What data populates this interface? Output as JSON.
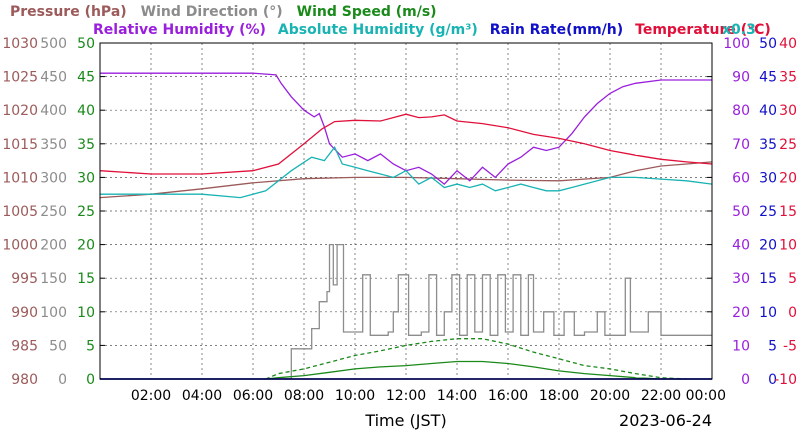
{
  "legend_row1": [
    {
      "key": "pressure",
      "label": "Pressure (hPa)",
      "color": "#9c5a5a"
    },
    {
      "key": "wind_dir",
      "label": "Wind Direction (°)",
      "color": "#8c8c8c"
    },
    {
      "key": "wind_speed",
      "label": "Wind Speed (m/s)",
      "color": "#1a8a1a"
    }
  ],
  "legend_row2": [
    {
      "key": "rel_hum",
      "label": "Relative Humidity (%)",
      "color": "#9a1fdc"
    },
    {
      "key": "abs_hum",
      "label": "Absolute Humidity (g/m³)",
      "color": "#19b3b3"
    },
    {
      "key": "rain",
      "label": "Rain Rate(mm/h)",
      "color": "#1010c8"
    },
    {
      "key": "temp",
      "label": "Temperature (°C)",
      "color": "#e0103a"
    }
  ],
  "abs_hum_scale_note": "x0.3",
  "axis_title": "Time (JST)",
  "date_label": "2023-06-24",
  "chart_data": {
    "type": "line",
    "title": "",
    "xlabel": "Time (JST)",
    "x_ticks": [
      "02:00",
      "04:00",
      "06:00",
      "08:00",
      "10:00",
      "12:00",
      "14:00",
      "16:00",
      "18:00",
      "20:00",
      "22:00",
      "00:00"
    ],
    "xlim_hours": [
      0,
      24
    ],
    "grid": true,
    "axes": {
      "pressure": {
        "min": 980,
        "max": 1030,
        "ticks": [
          "980",
          "985",
          "990",
          "995",
          "1000",
          "1005",
          "1010",
          "1015",
          "1020",
          "1025",
          "1030"
        ],
        "color": "#9c5a5a"
      },
      "wind_dir": {
        "min": 0,
        "max": 500,
        "ticks": [
          "0",
          "50",
          "100",
          "150",
          "200",
          "250",
          "300",
          "350",
          "400",
          "450",
          "500"
        ],
        "color": "#8c8c8c"
      },
      "wind_speed": {
        "min": 0,
        "max": 50,
        "ticks": [
          "0",
          "5",
          "10",
          "15",
          "20",
          "25",
          "30",
          "35",
          "40",
          "45",
          "50"
        ],
        "color": "#1a8a1a"
      },
      "rel_hum": {
        "min": 0,
        "max": 100,
        "ticks": [
          "0",
          "10",
          "20",
          "30",
          "40",
          "50",
          "60",
          "70",
          "80",
          "90",
          "100"
        ],
        "color": "#9a1fdc"
      },
      "rain": {
        "min": 0,
        "max": 50,
        "ticks": [
          "0",
          "5",
          "10",
          "15",
          "20",
          "25",
          "30",
          "35",
          "40",
          "45",
          "50"
        ],
        "color": "#1010c8"
      },
      "temp": {
        "min": -10,
        "max": 40,
        "ticks": [
          "-10",
          "-5",
          "0",
          "5",
          "10",
          "15",
          "20",
          "25",
          "30",
          "35",
          "40"
        ],
        "color": "#e0103a"
      }
    },
    "series": [
      {
        "name": "Pressure (hPa)",
        "axis": "pressure",
        "color": "#9c5a5a",
        "points": [
          [
            0,
            1007
          ],
          [
            2,
            1007.5
          ],
          [
            4,
            1008.3
          ],
          [
            6,
            1009.2
          ],
          [
            8,
            1009.8
          ],
          [
            10,
            1010
          ],
          [
            12,
            1010
          ],
          [
            14,
            1009.8
          ],
          [
            16,
            1009.6
          ],
          [
            18,
            1009.5
          ],
          [
            20,
            1010
          ],
          [
            21,
            1011
          ],
          [
            22,
            1011.7
          ],
          [
            23,
            1012
          ],
          [
            24,
            1012.3
          ]
        ]
      },
      {
        "name": "Wind Direction (°)",
        "axis": "wind_dir",
        "color": "#8c8c8c",
        "step": true,
        "points": [
          [
            7.2,
            0
          ],
          [
            7.5,
            45
          ],
          [
            8.1,
            45
          ],
          [
            8.3,
            75
          ],
          [
            8.6,
            115
          ],
          [
            8.9,
            130
          ],
          [
            9.0,
            200
          ],
          [
            9.15,
            140
          ],
          [
            9.3,
            200
          ],
          [
            9.55,
            70
          ],
          [
            10.0,
            70
          ],
          [
            10.3,
            155
          ],
          [
            10.6,
            65
          ],
          [
            11.3,
            70
          ],
          [
            11.5,
            100
          ],
          [
            11.7,
            155
          ],
          [
            12.1,
            65
          ],
          [
            12.6,
            70
          ],
          [
            12.9,
            155
          ],
          [
            13.2,
            65
          ],
          [
            13.5,
            100
          ],
          [
            13.8,
            155
          ],
          [
            14.1,
            65
          ],
          [
            14.4,
            155
          ],
          [
            14.7,
            70
          ],
          [
            15.0,
            155
          ],
          [
            15.3,
            65
          ],
          [
            15.6,
            155
          ],
          [
            15.9,
            70
          ],
          [
            16.2,
            155
          ],
          [
            16.5,
            65
          ],
          [
            16.8,
            155
          ],
          [
            17.0,
            70
          ],
          [
            17.4,
            100
          ],
          [
            17.8,
            65
          ],
          [
            18.2,
            100
          ],
          [
            18.6,
            65
          ],
          [
            19.0,
            70
          ],
          [
            19.5,
            100
          ],
          [
            19.8,
            65
          ],
          [
            20.3,
            65
          ],
          [
            20.6,
            150
          ],
          [
            20.8,
            70
          ],
          [
            21.5,
            100
          ],
          [
            22.0,
            65
          ],
          [
            24.0,
            65
          ]
        ]
      },
      {
        "name": "Wind Speed (m/s)",
        "axis": "wind_speed",
        "color": "#1a8a1a",
        "points": [
          [
            0,
            0
          ],
          [
            6.5,
            0
          ],
          [
            7,
            0.2
          ],
          [
            8,
            0.5
          ],
          [
            9,
            1
          ],
          [
            10,
            1.5
          ],
          [
            11,
            1.8
          ],
          [
            12,
            2
          ],
          [
            13,
            2.3
          ],
          [
            14,
            2.6
          ],
          [
            15,
            2.6
          ],
          [
            16,
            2.3
          ],
          [
            17,
            1.8
          ],
          [
            18,
            1.2
          ],
          [
            19,
            0.8
          ],
          [
            20,
            0.5
          ],
          [
            21,
            0.2
          ],
          [
            22,
            0
          ],
          [
            24,
            0
          ]
        ]
      },
      {
        "name": "Wind Speed gust",
        "axis": "wind_speed",
        "color": "#1a8a1a",
        "dashed": true,
        "points": [
          [
            6.5,
            0
          ],
          [
            7,
            0.8
          ],
          [
            8,
            1.5
          ],
          [
            9,
            2.5
          ],
          [
            10,
            3.5
          ],
          [
            11,
            4.2
          ],
          [
            12,
            5
          ],
          [
            13,
            5.6
          ],
          [
            14,
            6
          ],
          [
            15,
            6
          ],
          [
            16,
            5.2
          ],
          [
            17,
            4
          ],
          [
            18,
            3
          ],
          [
            19,
            2
          ],
          [
            20,
            1.5
          ],
          [
            21,
            0.8
          ],
          [
            22,
            0.2
          ],
          [
            23,
            0
          ]
        ]
      },
      {
        "name": "Relative Humidity (%)",
        "axis": "rel_hum",
        "color": "#9a1fdc",
        "points": [
          [
            0,
            91
          ],
          [
            3,
            91
          ],
          [
            6,
            91
          ],
          [
            6.9,
            90.5
          ],
          [
            7.1,
            88
          ],
          [
            7.5,
            84
          ],
          [
            8,
            80
          ],
          [
            8.4,
            78
          ],
          [
            8.6,
            79
          ],
          [
            8.8,
            75
          ],
          [
            9,
            70
          ],
          [
            9.5,
            66
          ],
          [
            10,
            67
          ],
          [
            10.5,
            65
          ],
          [
            11,
            67
          ],
          [
            11.5,
            64
          ],
          [
            12,
            62
          ],
          [
            12.5,
            63
          ],
          [
            13,
            61
          ],
          [
            13.5,
            58
          ],
          [
            14,
            62
          ],
          [
            14.5,
            59
          ],
          [
            15,
            63
          ],
          [
            15.5,
            60
          ],
          [
            16,
            64
          ],
          [
            16.5,
            66
          ],
          [
            17,
            69
          ],
          [
            17.5,
            68
          ],
          [
            18,
            69
          ],
          [
            18.5,
            73
          ],
          [
            19,
            78
          ],
          [
            19.5,
            82
          ],
          [
            20,
            85
          ],
          [
            20.5,
            87
          ],
          [
            21,
            88
          ],
          [
            22,
            89
          ],
          [
            23,
            89
          ],
          [
            24,
            89
          ]
        ]
      },
      {
        "name": "Absolute Humidity (g/m³)",
        "axis": "rel_hum",
        "color": "#19b3b3",
        "points": [
          [
            0,
            55
          ],
          [
            2,
            55
          ],
          [
            4,
            55
          ],
          [
            5.5,
            54
          ],
          [
            6.5,
            56
          ],
          [
            7.5,
            62
          ],
          [
            8.3,
            66
          ],
          [
            8.8,
            65
          ],
          [
            9.2,
            69
          ],
          [
            9.5,
            64
          ],
          [
            10,
            63
          ],
          [
            10.5,
            62
          ],
          [
            11,
            61
          ],
          [
            11.5,
            60
          ],
          [
            12,
            62
          ],
          [
            12.5,
            58
          ],
          [
            13,
            60
          ],
          [
            13.5,
            57
          ],
          [
            14,
            58
          ],
          [
            14.5,
            57
          ],
          [
            15,
            58
          ],
          [
            15.5,
            56
          ],
          [
            16,
            57
          ],
          [
            16.5,
            58
          ],
          [
            17,
            57
          ],
          [
            17.5,
            56
          ],
          [
            18,
            56
          ],
          [
            18.5,
            57
          ],
          [
            19,
            58
          ],
          [
            20,
            60
          ],
          [
            21,
            60
          ],
          [
            22,
            59.5
          ],
          [
            23,
            59
          ],
          [
            24,
            58
          ]
        ]
      },
      {
        "name": "Temperature (°C)",
        "axis": "temp",
        "color": "#e0103a",
        "points": [
          [
            0,
            21
          ],
          [
            2,
            20.5
          ],
          [
            4,
            20.5
          ],
          [
            6,
            21
          ],
          [
            7,
            22
          ],
          [
            8,
            25
          ],
          [
            8.7,
            27.2
          ],
          [
            9.2,
            28.3
          ],
          [
            10,
            28.5
          ],
          [
            11,
            28.4
          ],
          [
            12,
            29.4
          ],
          [
            12.5,
            28.9
          ],
          [
            13,
            29
          ],
          [
            13.5,
            29.3
          ],
          [
            14,
            28.4
          ],
          [
            15,
            28
          ],
          [
            16,
            27.4
          ],
          [
            17,
            26.4
          ],
          [
            18,
            25.8
          ],
          [
            19,
            25
          ],
          [
            20,
            24
          ],
          [
            21,
            23.3
          ],
          [
            22,
            22.7
          ],
          [
            23,
            22.3
          ],
          [
            24,
            22
          ]
        ]
      },
      {
        "name": "Rain Rate(mm/h)",
        "axis": "rain",
        "color": "#1010c8",
        "points": [
          [
            0,
            0
          ],
          [
            24,
            0
          ]
        ]
      }
    ]
  }
}
